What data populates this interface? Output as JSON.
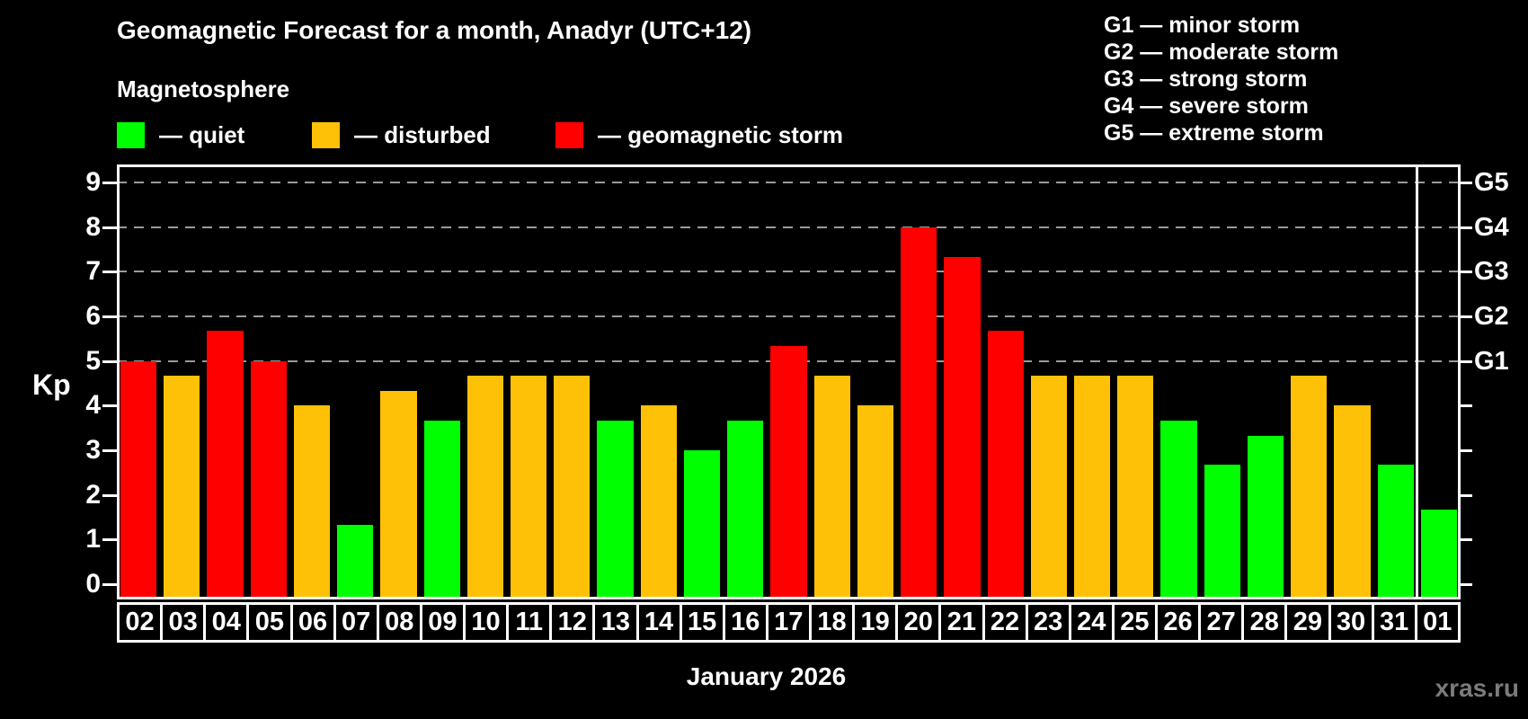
{
  "title": "Geomagnetic Forecast for a month, Anadyr (UTC+12)",
  "subtitle": "Magnetosphere",
  "legend": {
    "items": [
      {
        "key": "quiet",
        "label": "— quiet",
        "color": "#00ff00"
      },
      {
        "key": "disturbed",
        "label": "— disturbed",
        "color": "#ffc107"
      },
      {
        "key": "storm",
        "label": "— geomagnetic storm",
        "color": "#ff0000"
      }
    ]
  },
  "g_legend": {
    "lines": [
      "G1 — minor storm",
      "G2 — moderate storm",
      "G3 — strong storm",
      "G4 — severe storm",
      "G5 — extreme storm"
    ]
  },
  "chart_data": {
    "type": "bar",
    "title": "Geomagnetic Forecast for a month, Anadyr (UTC+12)",
    "xlabel": "January 2026",
    "ylabel": "Kp",
    "ylim": [
      0,
      9
    ],
    "grid": "dashed horizontal gridlines at Kp 5,6,7,8,9 only",
    "legend_position": "top-left",
    "categories": [
      "02",
      "03",
      "04",
      "05",
      "06",
      "07",
      "08",
      "09",
      "10",
      "11",
      "12",
      "13",
      "14",
      "15",
      "16",
      "17",
      "18",
      "19",
      "20",
      "21",
      "22",
      "23",
      "24",
      "25",
      "26",
      "27",
      "28",
      "29",
      "30",
      "31",
      "01"
    ],
    "values": [
      5.0,
      4.67,
      5.67,
      5.0,
      4.0,
      1.33,
      4.33,
      3.67,
      4.67,
      4.67,
      4.67,
      3.67,
      4.0,
      3.0,
      3.67,
      5.33,
      4.67,
      4.0,
      8.0,
      7.33,
      5.67,
      4.67,
      4.67,
      4.67,
      3.67,
      2.67,
      3.33,
      4.67,
      4.0,
      2.67,
      1.67
    ],
    "states": [
      "storm",
      "disturbed",
      "storm",
      "storm",
      "disturbed",
      "quiet",
      "disturbed",
      "quiet",
      "disturbed",
      "disturbed",
      "disturbed",
      "quiet",
      "disturbed",
      "quiet",
      "quiet",
      "storm",
      "disturbed",
      "disturbed",
      "storm",
      "storm",
      "storm",
      "disturbed",
      "disturbed",
      "disturbed",
      "quiet",
      "quiet",
      "quiet",
      "disturbed",
      "disturbed",
      "quiet",
      "quiet"
    ],
    "y_ticks": [
      0,
      1,
      2,
      3,
      4,
      5,
      6,
      7,
      8,
      9
    ],
    "right_axis_labels": [
      {
        "value": 5,
        "label": "G1"
      },
      {
        "value": 6,
        "label": "G2"
      },
      {
        "value": 7,
        "label": "G3"
      },
      {
        "value": 8,
        "label": "G4"
      },
      {
        "value": 9,
        "label": "G5"
      }
    ],
    "month_separator_after_index": 29
  },
  "watermark": "xras.ru",
  "colors": {
    "background": "#000000",
    "quiet": "#00ff00",
    "disturbed": "#ffc107",
    "storm": "#ff0000",
    "grid": "#9a9a9a",
    "text": "#ffffff",
    "watermark": "#7b7b7b"
  }
}
